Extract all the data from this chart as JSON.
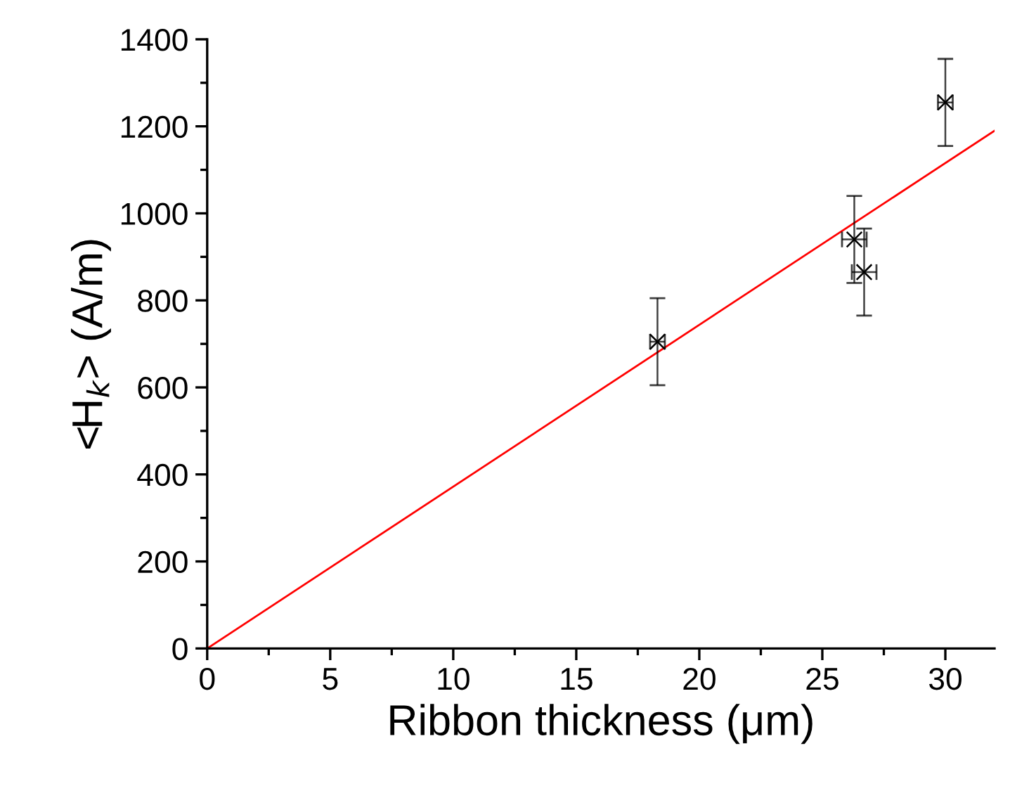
{
  "chart_data": {
    "type": "scatter",
    "xlabel": "Ribbon thickness (μm)",
    "ylabel": "<H$_{k}$> (A/m)",
    "xlim": [
      0,
      32
    ],
    "ylim": [
      0,
      1400
    ],
    "xticks": [
      0,
      5,
      10,
      15,
      20,
      25,
      30
    ],
    "yticks": [
      0,
      200,
      400,
      600,
      800,
      1000,
      1200,
      1400
    ],
    "grid": false,
    "series": [
      {
        "marker": "cross",
        "color": "#000000",
        "x": [
          18.3,
          26.3,
          26.7,
          30.0
        ],
        "values": [
          705,
          940,
          865,
          1255
        ],
        "errors": [
          100,
          100,
          100,
          100
        ],
        "xerrors": [
          0.3,
          0.5,
          0.5,
          0.3
        ]
      },
      {
        "type": "line",
        "color": "#ff0000",
        "x": [
          0,
          32
        ],
        "values": [
          0,
          1190
        ],
        "line_style": "solid"
      }
    ]
  }
}
